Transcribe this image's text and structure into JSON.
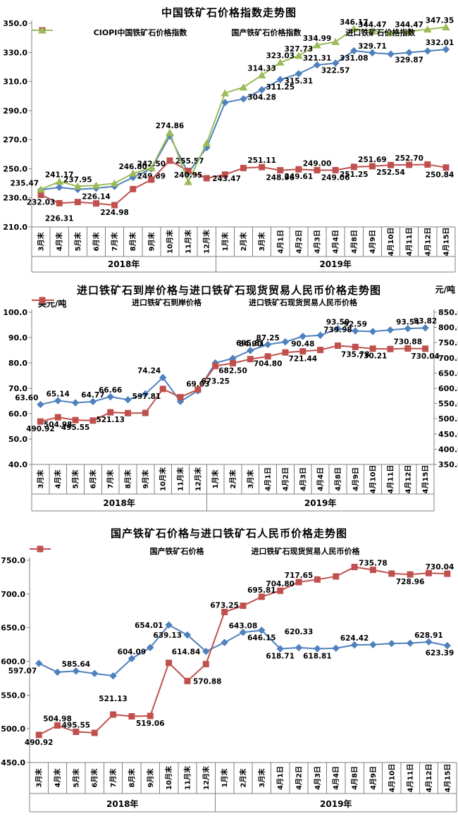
{
  "page_bg": "#ffffff",
  "axis_color": "#808080",
  "label_color": "#000000",
  "charts": [
    {
      "title": "中国铁矿石价格指数走势图",
      "y_axis": {
        "min": 210,
        "max": 350,
        "ticks": [
          "350.0",
          "330.0",
          "310.0",
          "290.0",
          "270.0",
          "250.0",
          "230.0",
          "210.0"
        ]
      },
      "categories": [
        "3月末",
        "4月末",
        "5月末",
        "6月末",
        "7月末",
        "8月末",
        "9月末",
        "10月末",
        "11月末",
        "12月末",
        "1月末",
        "2月末",
        "3月末",
        "4月1日",
        "4月2日",
        "4月3日",
        "4月4日",
        "4月8日",
        "4月9日",
        "4月10日",
        "4月11日",
        "4月12日",
        "4月15日"
      ],
      "groups": [
        {
          "label": "2018年",
          "count": 10
        },
        {
          "label": "2019年",
          "count": 13
        }
      ],
      "chart_type": "line",
      "series": [
        {
          "name": "CIOPI中国铁矿石价格指数",
          "color": "#4F81BD",
          "marker": "diamond",
          "values": [
            235.47,
            237.2,
            235.8,
            236.6,
            237.9,
            244.0,
            249.89,
            272.5,
            247.0,
            264.5,
            295.5,
            298.0,
            304.28,
            311.25,
            315.31,
            321.31,
            322.57,
            331.08,
            329.71,
            328.8,
            329.87,
            330.9,
            332.01
          ],
          "labels": [
            "235.47",
            null,
            null,
            null,
            null,
            null,
            "249.89",
            null,
            null,
            null,
            null,
            null,
            "304.28",
            "311.25",
            "315.31",
            "321.31",
            "322.57",
            "331.08",
            "329.71",
            null,
            "329.87",
            null,
            "332.01"
          ],
          "pos": [
            "al",
            null,
            null,
            null,
            null,
            null,
            "b",
            null,
            null,
            null,
            null,
            null,
            "b",
            "b",
            "b",
            "a",
            "b",
            "b",
            "a",
            null,
            "b",
            null,
            "a"
          ]
        },
        {
          "name": "国产铁矿石价格指数",
          "color": "#C0504D",
          "marker": "square",
          "values": [
            232.03,
            226.31,
            227.1,
            226.14,
            224.98,
            236.0,
            242.5,
            255.57,
            248.5,
            243.47,
            246.0,
            250.5,
            251.11,
            248.96,
            249.61,
            249.0,
            249.06,
            251.25,
            251.69,
            252.54,
            252.7,
            252.9,
            250.84
          ],
          "labels": [
            "232.03",
            "226.31",
            null,
            "226.14",
            "224.98",
            null,
            "242.50",
            "255.57",
            null,
            "243.47",
            null,
            null,
            "251.11",
            "248.96",
            "249.61",
            "249.00",
            "249.06",
            "251.25",
            "251.69",
            "252.54",
            "252.70",
            null,
            "250.84"
          ],
          "pos": [
            "b",
            "b2",
            null,
            "a",
            "b",
            null,
            "a2",
            "r",
            null,
            "r",
            null,
            null,
            "a",
            "b",
            "b",
            "a",
            "b",
            "b",
            "a",
            "b",
            "a",
            null,
            "b"
          ]
        },
        {
          "name": "进口铁矿石价格指数",
          "color": "#9BBB59",
          "marker": "triangle",
          "values": [
            235.8,
            241.17,
            237.95,
            238.5,
            240.0,
            246.8,
            250.5,
            274.86,
            240.95,
            267.5,
            302.0,
            306.0,
            314.33,
            323.03,
            327.73,
            334.99,
            337.2,
            346.17,
            344.47,
            343.4,
            344.47,
            345.8,
            347.35
          ],
          "labels": [
            null,
            "241.17",
            "237.95",
            null,
            null,
            "246.80",
            null,
            "274.86",
            "240.95",
            null,
            null,
            null,
            "314.33",
            "323.03",
            "327.73",
            "334.99",
            null,
            "346.17",
            "344.47",
            null,
            "344.47",
            null,
            "347.35"
          ],
          "pos": [
            null,
            "a",
            "a",
            null,
            null,
            "a",
            null,
            "a",
            "a",
            null,
            null,
            null,
            "a",
            "a",
            "a",
            "a",
            null,
            "a",
            "a",
            null,
            "a",
            null,
            "a"
          ]
        }
      ]
    },
    {
      "title": "进口铁矿石到岸价格与进口铁矿石现货贸易人民币价格走势图",
      "y_axis": {
        "min": 40,
        "max": 100,
        "unit": "美元/吨",
        "ticks": [
          "100.0",
          "90.0",
          "80.0",
          "70.0",
          "60.0",
          "50.0",
          "40.0"
        ]
      },
      "y_axis_right": {
        "min": 350,
        "max": 850,
        "unit": "元/吨",
        "ticks": [
          "850.0",
          "800.0",
          "750.0",
          "700.0",
          "650.0",
          "600.0",
          "550.0",
          "500.0",
          "450.0",
          "400.0",
          "350.0"
        ]
      },
      "categories": [
        "3月末",
        "4月末",
        "5月末",
        "6月末",
        "7月末",
        "8月末",
        "9月末",
        "10月末",
        "11月末",
        "12月末",
        "1月末",
        "2月末",
        "3月末",
        "4月1日",
        "4月2日",
        "4月3日",
        "4月4日",
        "4月8日",
        "4月9日",
        "4月10日",
        "4月11日",
        "4月12日",
        "4月15日"
      ],
      "groups": [
        {
          "label": "2018年",
          "count": 10
        },
        {
          "label": "2019年",
          "count": 13
        }
      ],
      "chart_type": "line",
      "series": [
        {
          "name": "进口铁矿石到岸价格",
          "color": "#4F81BD",
          "marker": "diamond",
          "values": [
            63.6,
            65.14,
            64.3,
            64.77,
            66.66,
            65.5,
            67.8,
            74.24,
            64.8,
            69.03,
            80.0,
            81.8,
            84.9,
            87.25,
            88.3,
            90.48,
            90.9,
            93.5,
            92.59,
            92.4,
            93.0,
            93.54,
            93.82
          ],
          "labels": [
            "63.60",
            "65.14",
            null,
            "64.77",
            "66.66",
            null,
            null,
            "74.24",
            null,
            "69.03",
            null,
            null,
            "84.90",
            "87.25",
            null,
            "90.48",
            null,
            "93.50",
            "92.59",
            null,
            null,
            "93.54",
            "93.82"
          ],
          "pos": [
            "al",
            "a",
            null,
            "a",
            "a",
            null,
            null,
            "al",
            null,
            "a",
            null,
            null,
            "a",
            "a",
            null,
            "b",
            null,
            "a",
            "a",
            null,
            null,
            "a",
            "a"
          ]
        },
        {
          "name": "进口铁矿石现货贸易人民币价格",
          "color": "#C0504D",
          "marker": "square",
          "axis": "right",
          "values": [
            490.92,
            504.98,
            495.55,
            494.0,
            521.13,
            518.5,
            519.06,
            597.81,
            570.88,
            596.0,
            673.25,
            682.5,
            695.81,
            704.8,
            717.65,
            721.44,
            726.0,
            739.98,
            735.78,
            730.21,
            728.96,
            730.88,
            730.04
          ],
          "labels": [
            "490.92",
            "504.98",
            "495.55",
            null,
            "521.13",
            null,
            null,
            "597.81",
            null,
            null,
            "673.25",
            "682.50",
            "695.81",
            "704.80",
            null,
            "721.44",
            null,
            "739.98",
            "735.78",
            "730.21",
            null,
            "730.88",
            "730.04"
          ],
          "pos": [
            "b",
            "b",
            "b",
            null,
            "b",
            null,
            null,
            "bl",
            null,
            null,
            "b2",
            "b",
            "a2",
            "b",
            null,
            "b",
            null,
            "a2",
            "b",
            "b",
            null,
            "a",
            "b"
          ]
        }
      ]
    },
    {
      "title": "国产铁矿石价格与进口铁矿石人民币价格走势图",
      "y_axis": {
        "min": 450,
        "max": 750,
        "ticks": [
          "750.0",
          "700.0",
          "650.0",
          "600.0",
          "550.0",
          "500.0",
          "450.0"
        ]
      },
      "categories": [
        "3月末",
        "4月末",
        "5月末",
        "6月末",
        "7月末",
        "8月末",
        "9月末",
        "10月末",
        "11月末",
        "12月末",
        "1月末",
        "2月末",
        "3月末",
        "4月1日",
        "4月2日",
        "4月3日",
        "4月4日",
        "4月8日",
        "4月9日",
        "4月10日",
        "4月11日",
        "4月12日",
        "4月15日"
      ],
      "groups": [
        {
          "label": "2018年",
          "count": 10
        },
        {
          "label": "2019年",
          "count": 13
        }
      ],
      "chart_type": "line",
      "series": [
        {
          "name": "国产铁矿石价格",
          "color": "#4F81BD",
          "marker": "diamond",
          "values": [
            597.07,
            584.0,
            585.64,
            582.0,
            578.5,
            604.09,
            620.5,
            654.01,
            639.13,
            614.84,
            628.0,
            643.08,
            646.15,
            618.71,
            620.33,
            618.81,
            619.5,
            624.42,
            624.8,
            626.5,
            627.0,
            628.91,
            623.39
          ],
          "labels": [
            "597.07",
            null,
            "585.64",
            null,
            null,
            "604.09",
            null,
            "654.01",
            "639.13",
            "614.84",
            null,
            "643.08",
            "646.15",
            "618.71",
            "620.33",
            "618.81",
            null,
            "624.42",
            null,
            null,
            null,
            "628.91",
            "623.39"
          ],
          "pos": [
            "bl",
            null,
            "a",
            null,
            null,
            "a",
            null,
            "l",
            "l",
            "l",
            null,
            "a",
            "b",
            "b",
            "a2",
            "b",
            null,
            "a",
            null,
            null,
            null,
            "a",
            "b"
          ]
        },
        {
          "name": "进口铁矿石现货贸易人民币价格",
          "color": "#C0504D",
          "marker": "square",
          "values": [
            490.92,
            504.98,
            495.55,
            494.0,
            521.13,
            518.5,
            519.06,
            597.81,
            570.88,
            596.0,
            673.25,
            682.5,
            695.81,
            704.8,
            717.65,
            721.44,
            726.0,
            739.98,
            735.78,
            730.21,
            728.96,
            730.88,
            730.04
          ],
          "labels": [
            "490.92",
            "504.98",
            "495.55",
            null,
            "521.13",
            null,
            "519.06",
            null,
            "570.88",
            null,
            "673.25",
            null,
            "695.81",
            "704.80",
            "717.65",
            null,
            null,
            null,
            "735.78",
            null,
            "728.96",
            null,
            "730.04"
          ],
          "pos": [
            "b",
            "a",
            "a",
            null,
            "a2",
            null,
            "b",
            null,
            "r",
            null,
            "a",
            null,
            "a",
            "a",
            "a",
            null,
            null,
            null,
            "a",
            null,
            "b",
            null,
            "a"
          ]
        }
      ]
    }
  ]
}
